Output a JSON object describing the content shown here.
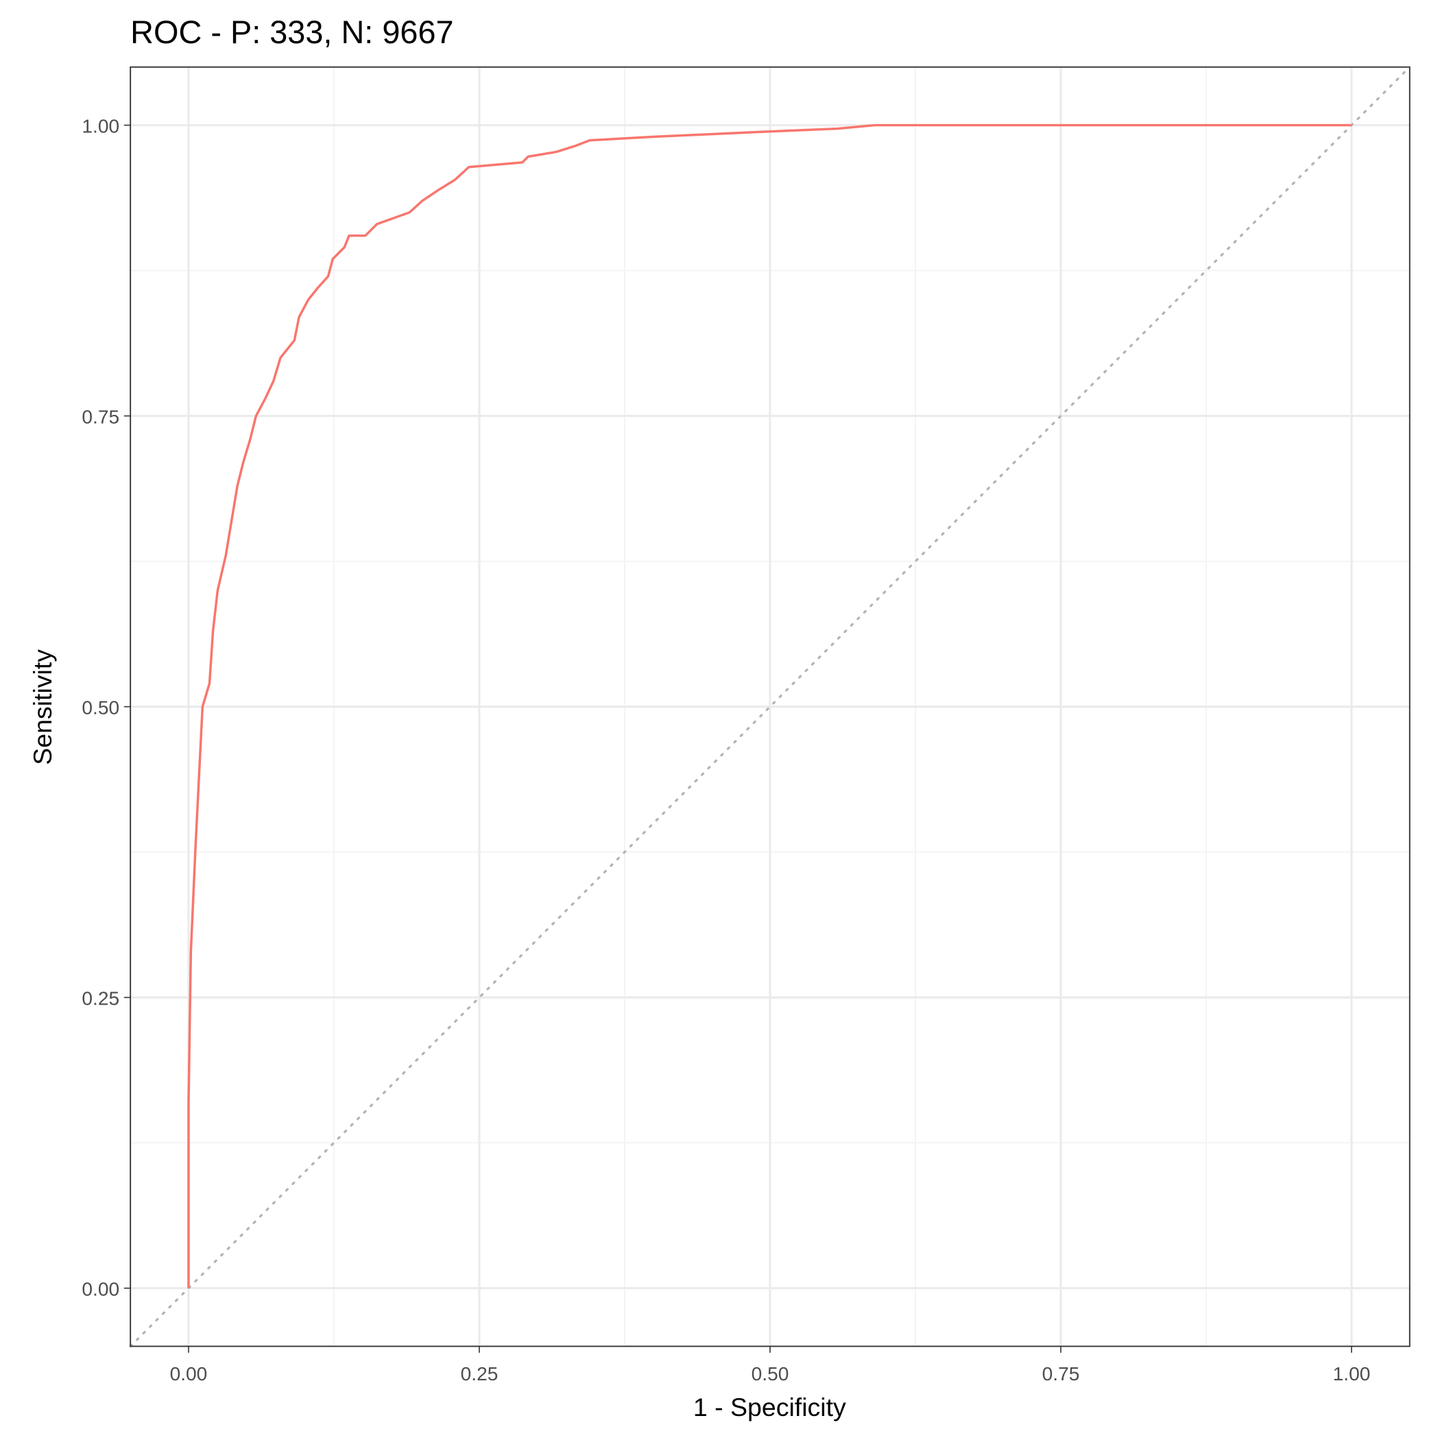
{
  "chart_data": {
    "type": "line",
    "title": "ROC - P: 333, N: 9667",
    "x_label": "1 - Specificity",
    "y_label": "Sensitivity",
    "xlim": [
      -0.05,
      1.05
    ],
    "ylim": [
      -0.05,
      1.05
    ],
    "xticks": [
      {
        "value": 0,
        "label": "0.00"
      },
      {
        "value": 0.25,
        "label": "0.25"
      },
      {
        "value": 0.5,
        "label": "0.50"
      },
      {
        "value": 0.75,
        "label": "0.75"
      },
      {
        "value": 1,
        "label": "1.00"
      }
    ],
    "yticks": [
      {
        "value": 0,
        "label": "0.00"
      },
      {
        "value": 0.25,
        "label": "0.25"
      },
      {
        "value": 0.5,
        "label": "0.50"
      },
      {
        "value": 0.75,
        "label": "0.75"
      },
      {
        "value": 1,
        "label": "1.00"
      }
    ],
    "minor_grid": [
      0.125,
      0.375,
      0.625,
      0.875
    ],
    "grid": true,
    "diagonal_reference": true,
    "series": [
      {
        "color": "#F8766D",
        "x": [
          0,
          0,
          0.002,
          0.006,
          0.01,
          0.012,
          0.018,
          0.021,
          0.025,
          0.032,
          0.037,
          0.042,
          0.047,
          0.053,
          0.058,
          0.066,
          0.073,
          0.079,
          0.091,
          0.095,
          0.103,
          0.111,
          0.12,
          0.124,
          0.134,
          0.138,
          0.152,
          0.162,
          0.176,
          0.19,
          0.201,
          0.216,
          0.229,
          0.241,
          0.287,
          0.292,
          0.316,
          0.332,
          0.345,
          0.399,
          0.486,
          0.558,
          0.59,
          1
        ],
        "values": [
          0,
          0.16,
          0.29,
          0.38,
          0.46,
          0.5,
          0.52,
          0.565,
          0.6,
          0.63,
          0.66,
          0.69,
          0.71,
          0.73,
          0.75,
          0.765,
          0.78,
          0.8,
          0.815,
          0.835,
          0.85,
          0.86,
          0.87,
          0.885,
          0.895,
          0.905,
          0.905,
          0.915,
          0.92,
          0.925,
          0.935,
          0.945,
          0.953,
          0.964,
          0.968,
          0.973,
          0.977,
          0.982,
          0.987,
          0.99,
          0.994,
          0.997,
          1,
          1
        ]
      }
    ]
  }
}
